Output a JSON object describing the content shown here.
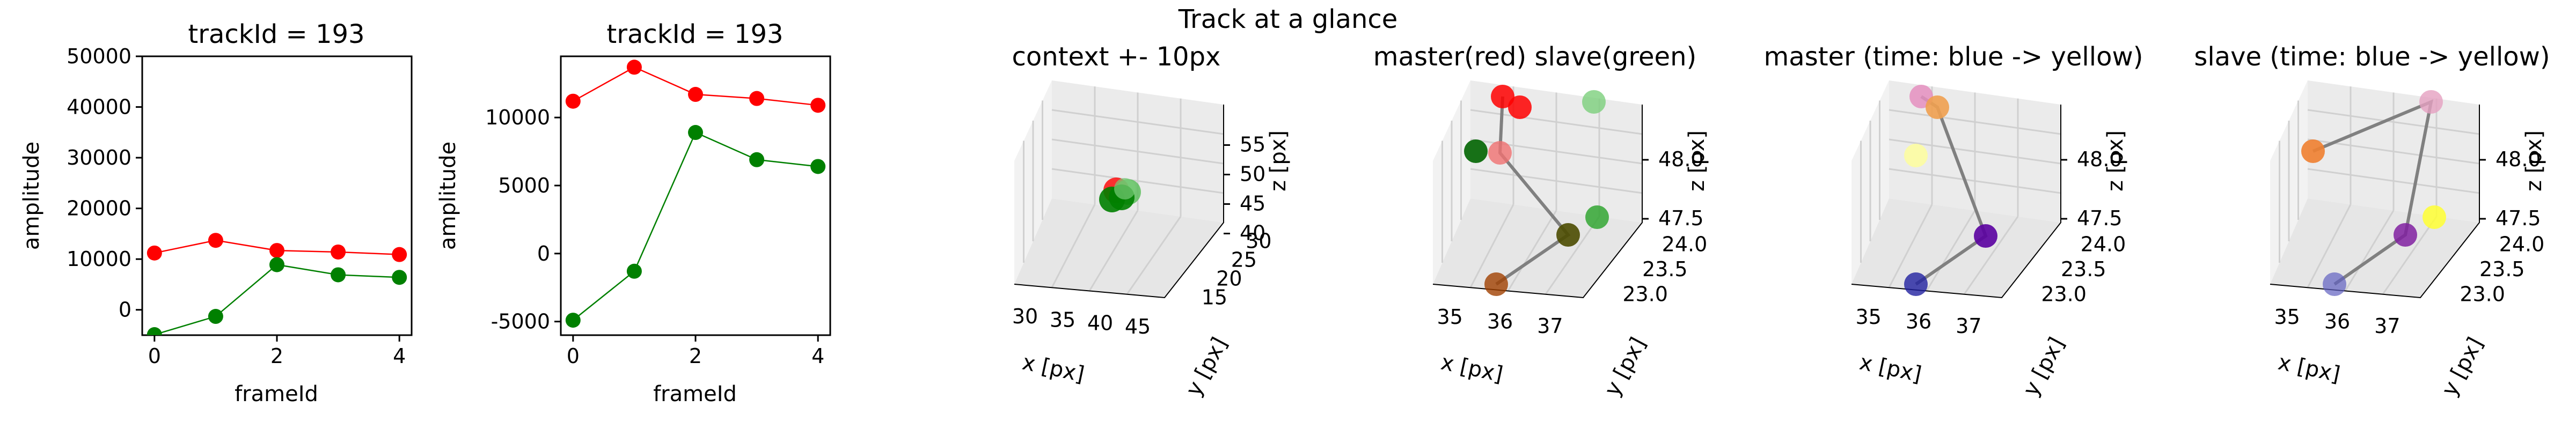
{
  "suptitle": "Track at a glance",
  "colors": {
    "red": "#ff0000",
    "green": "#008000",
    "track_line": "#808080"
  },
  "chart_data": [
    {
      "type": "line",
      "title": "trackId = 193",
      "xlabel": "frameId",
      "ylabel": "amplitude",
      "x": [
        0,
        1,
        2,
        3,
        4
      ],
      "xticks": [
        "0",
        "2",
        "4"
      ],
      "yticks": [
        "0",
        "10000",
        "20000",
        "30000",
        "40000",
        "50000"
      ],
      "xlim": [
        -0.2,
        4.2
      ],
      "ylim": [
        -5000,
        50000
      ],
      "series": [
        {
          "color": "#ff0000",
          "values": [
            11200,
            13700,
            11700,
            11400,
            10900
          ]
        },
        {
          "color": "#008000",
          "values": [
            -4900,
            -1300,
            8900,
            6900,
            6400
          ]
        }
      ]
    },
    {
      "type": "line",
      "title": "trackId = 193",
      "xlabel": "frameId",
      "ylabel": "amplitude",
      "x": [
        0,
        1,
        2,
        3,
        4
      ],
      "xticks": [
        "0",
        "2",
        "4"
      ],
      "yticks": [
        "-5000",
        "0",
        "5000",
        "10000"
      ],
      "xlim": [
        -0.2,
        4.2
      ],
      "ylim": [
        -6000,
        14500
      ],
      "series": [
        {
          "color": "#ff0000",
          "values": [
            11200,
            13700,
            11700,
            11400,
            10900
          ]
        },
        {
          "color": "#008000",
          "values": [
            -4900,
            -1300,
            8900,
            6900,
            6400
          ]
        }
      ]
    },
    {
      "type": "scatter",
      "title": "context +- 10px",
      "xlabel": "x [px]",
      "ylabel": "y [px]",
      "zlabel": "z [px]",
      "xticks": [
        "30",
        "35",
        "40",
        "45"
      ],
      "yticks": [
        "15",
        "20",
        "25",
        "30"
      ],
      "zticks": [
        "40",
        "45",
        "50",
        "55"
      ]
    },
    {
      "type": "scatter",
      "title": "master(red) slave(green)",
      "xlabel": "x [px]",
      "ylabel": "y [px]",
      "zlabel": "z [px]",
      "xticks": [
        "35",
        "36",
        "37"
      ],
      "yticks": [
        "23.0",
        "23.5",
        "24.0"
      ],
      "zticks": [
        "47.5",
        "48.0"
      ]
    },
    {
      "type": "scatter",
      "title": "master (time: blue -> yellow)",
      "xlabel": "x [px]",
      "ylabel": "y [px]",
      "zlabel": "z [px]",
      "xticks": [
        "35",
        "36",
        "37"
      ],
      "yticks": [
        "23.0",
        "23.5",
        "24.0"
      ],
      "zticks": [
        "47.5",
        "48.0"
      ]
    },
    {
      "type": "scatter",
      "title": "slave (time: blue -> yellow)",
      "xlabel": "x [px]",
      "ylabel": "y [px]",
      "zlabel": "z [px]",
      "xticks": [
        "35",
        "36",
        "37"
      ],
      "yticks": [
        "23.0",
        "23.5",
        "24.0"
      ],
      "zticks": [
        "47.5",
        "48.0"
      ]
    }
  ]
}
